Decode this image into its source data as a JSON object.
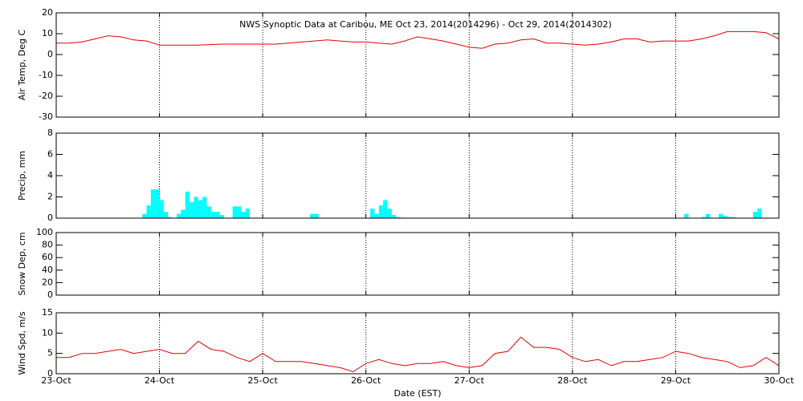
{
  "chart_data": [
    {
      "type": "line",
      "title": "NWS Synoptic Data at Caribou, ME   Oct 23, 2014(2014296) - Oct 29, 2014(2014302)",
      "ylabel": "Air Temp, Deg C",
      "ylim": [
        -30,
        20
      ],
      "yticks": [
        -30,
        -20,
        -10,
        0,
        10,
        20
      ],
      "x": [
        0,
        3,
        6,
        9,
        12,
        15,
        18,
        21,
        24,
        27,
        30,
        33,
        36,
        39,
        42,
        45,
        48,
        51,
        54,
        57,
        60,
        63,
        66,
        69,
        72,
        75,
        78,
        81,
        84,
        87,
        90,
        93,
        96,
        99,
        102,
        105,
        108,
        111,
        114,
        117,
        120,
        123,
        126,
        129,
        132,
        135,
        138,
        141,
        144,
        147,
        150,
        153,
        156,
        159,
        162,
        165,
        168
      ],
      "series": [
        {
          "color": "#e00000",
          "values": [
            5.5,
            5.5,
            6,
            7.5,
            9,
            8.5,
            7,
            6.5,
            4.5,
            4.5,
            4.5,
            4.5,
            4.8,
            5,
            5,
            5,
            5,
            5,
            5.5,
            6,
            6.5,
            7,
            6.5,
            6,
            6,
            5.5,
            5,
            6.5,
            8.5,
            7.5,
            6.5,
            5,
            3.5,
            3,
            5,
            5.5,
            7,
            7.5,
            5.5,
            5.5,
            5,
            4.5,
            5,
            6,
            7.5,
            7.5,
            6,
            6.5,
            6.5,
            6.5,
            7.5,
            9,
            11,
            11,
            11,
            10.5,
            7.5
          ]
        }
      ]
    },
    {
      "type": "bar",
      "ylabel": "Precip, mm",
      "ylim": [
        0,
        8
      ],
      "yticks": [
        0,
        2,
        4,
        6,
        8
      ],
      "color": "#00ffff",
      "x": [
        20,
        21,
        22,
        23,
        24,
        25,
        26,
        28,
        29,
        30,
        31,
        32,
        33,
        34,
        35,
        36,
        37,
        38,
        41,
        42,
        43,
        44,
        59,
        60,
        73,
        74,
        75,
        76,
        77,
        78,
        79,
        146,
        150,
        151,
        154,
        155,
        156,
        157,
        162,
        163
      ],
      "values": [
        0.4,
        1.2,
        2.7,
        2.7,
        1.7,
        0.6,
        0.1,
        0.4,
        0.8,
        2.5,
        1.5,
        2.0,
        1.7,
        2.0,
        1.1,
        0.6,
        0.6,
        0.3,
        1.1,
        1.1,
        0.6,
        0.9,
        0.4,
        0.4,
        0.9,
        0.4,
        1.2,
        1.7,
        0.9,
        0.3,
        0.1,
        0.4,
        0.1,
        0.4,
        0.4,
        0.2,
        0.1,
        0.1,
        0.6,
        0.9
      ]
    },
    {
      "type": "line",
      "ylabel": "Snow Dep, cm",
      "ylim": [
        0,
        100
      ],
      "yticks": [
        0,
        20,
        40,
        60,
        80,
        100
      ],
      "series": []
    },
    {
      "type": "line",
      "ylabel": "Wind Spd, m/s",
      "ylim": [
        0,
        15
      ],
      "yticks": [
        0,
        5,
        10,
        15
      ],
      "xlabel": "Date (EST)",
      "xlim": [
        0,
        168
      ],
      "xticks": [
        {
          "value": 0,
          "label": "23-Oct"
        },
        {
          "value": 24,
          "label": "24-Oct"
        },
        {
          "value": 48,
          "label": "25-Oct"
        },
        {
          "value": 72,
          "label": "26-Oct"
        },
        {
          "value": 96,
          "label": "27-Oct"
        },
        {
          "value": 120,
          "label": "28-Oct"
        },
        {
          "value": 144,
          "label": "29-Oct"
        },
        {
          "value": 168,
          "label": "30-Oct"
        }
      ],
      "x": [
        0,
        3,
        6,
        9,
        12,
        15,
        18,
        21,
        24,
        27,
        30,
        33,
        36,
        39,
        42,
        45,
        48,
        51,
        54,
        57,
        60,
        63,
        66,
        69,
        72,
        75,
        78,
        81,
        84,
        87,
        90,
        93,
        96,
        99,
        102,
        105,
        108,
        111,
        114,
        117,
        120,
        123,
        126,
        129,
        132,
        135,
        138,
        141,
        144,
        147,
        150,
        153,
        156,
        159,
        162,
        165,
        168
      ],
      "series": [
        {
          "color": "#e00000",
          "values": [
            4,
            4,
            5,
            5,
            5.5,
            6,
            5,
            5.5,
            6,
            5,
            5,
            8,
            6,
            5.5,
            4,
            3,
            5,
            3,
            3,
            3,
            2.5,
            2,
            1.5,
            0.5,
            2.5,
            3.5,
            2.5,
            2,
            2.5,
            2.5,
            3,
            2,
            1.5,
            2,
            5,
            5.5,
            9,
            6.5,
            6.5,
            6,
            4,
            3,
            3.5,
            2,
            3,
            3,
            3.5,
            4,
            5.5,
            5,
            4,
            3.5,
            3,
            1.5,
            2,
            4,
            2
          ]
        }
      ]
    }
  ]
}
